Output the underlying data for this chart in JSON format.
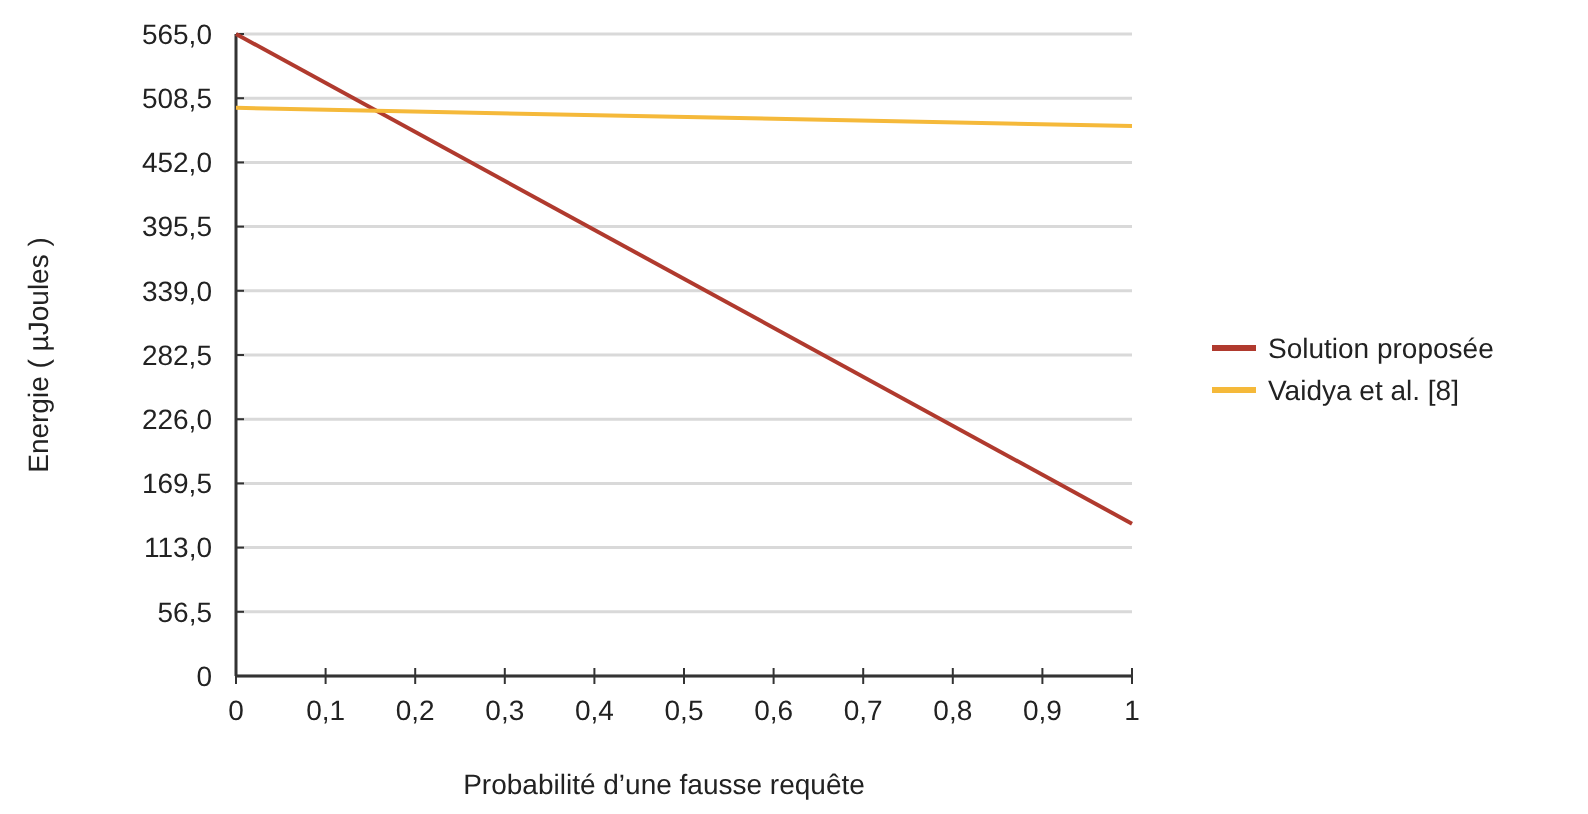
{
  "chart_data": {
    "type": "line",
    "xlabel": "Probabilité d’une fausse requête",
    "ylabel": "Energie ( µJoules )",
    "x": [
      0,
      1
    ],
    "series": [
      {
        "name": "Solution proposée",
        "color": "#b03a2e",
        "values": [
          565,
          134
        ]
      },
      {
        "name": "Vaidya et al. [8]",
        "color": "#f5b93a",
        "values": [
          500,
          484
        ]
      }
    ],
    "xlim": [
      0,
      1
    ],
    "ylim": [
      0,
      565
    ],
    "xticks": [
      0,
      {
        "value": 0.1,
        "label": "0,1"
      },
      {
        "value": 0.2,
        "label": "0,2"
      },
      {
        "value": 0.3,
        "label": "0,3"
      },
      {
        "value": 0.4,
        "label": "0,4"
      },
      {
        "value": 0.5,
        "label": "0,5"
      },
      {
        "value": 0.6,
        "label": "0,6"
      },
      {
        "value": 0.7,
        "label": "0,7"
      },
      {
        "value": 0.8,
        "label": "0,8"
      },
      {
        "value": 0.9,
        "label": "0,9"
      },
      1
    ],
    "yticks": [
      0,
      {
        "value": 56.5,
        "label": "56,5"
      },
      {
        "value": 113,
        "label": "113,0"
      },
      {
        "value": 169.5,
        "label": "169,5"
      },
      {
        "value": 226,
        "label": "226,0"
      },
      {
        "value": 282.5,
        "label": "282,5"
      },
      {
        "value": 339,
        "label": "339,0"
      },
      {
        "value": 395.5,
        "label": "395,5"
      },
      {
        "value": 452,
        "label": "452,0"
      },
      {
        "value": 508.5,
        "label": "508,5"
      },
      {
        "value": 565,
        "label": "565,0"
      }
    ],
    "grid": "y",
    "legend": "right",
    "line_style": "solid",
    "marker": "none"
  }
}
